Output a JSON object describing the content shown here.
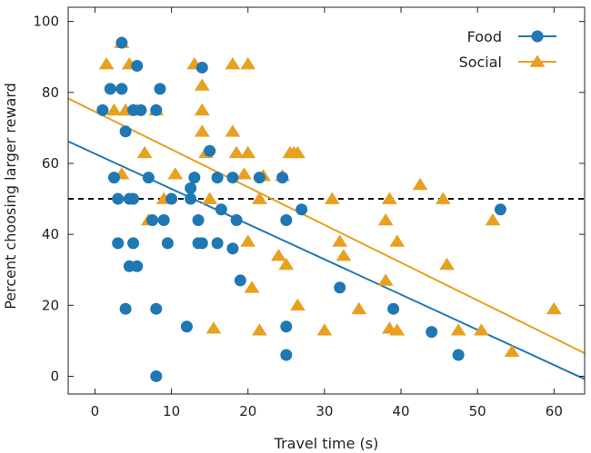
{
  "chart_data": {
    "type": "scatter",
    "title": "",
    "xlabel": "Travel time (s)",
    "ylabel": "Percent choosing larger reward",
    "xlim": [
      -3.5,
      64
    ],
    "ylim": [
      -5,
      104
    ],
    "xticks": [
      0,
      10,
      20,
      30,
      40,
      50,
      60
    ],
    "yticks": [
      0,
      20,
      40,
      60,
      80,
      100
    ],
    "reference_line": {
      "y": 50,
      "style": "dashed",
      "color": "#111111"
    },
    "legend_position": "top-right",
    "series": [
      {
        "name": "Food",
        "marker": "circle",
        "color": "#1f77b4",
        "fit_line": [
          [
            -3.5,
            66.2
          ],
          [
            64,
            -0.8
          ]
        ],
        "points": [
          [
            1,
            75
          ],
          [
            2,
            81
          ],
          [
            2.5,
            56
          ],
          [
            3,
            37.5
          ],
          [
            3,
            50
          ],
          [
            3.5,
            81
          ],
          [
            3.5,
            94
          ],
          [
            4,
            69
          ],
          [
            4,
            19
          ],
          [
            4.5,
            31
          ],
          [
            4.5,
            50
          ],
          [
            5,
            37.5
          ],
          [
            5,
            75
          ],
          [
            5,
            50
          ],
          [
            5.5,
            87.5
          ],
          [
            5.5,
            31
          ],
          [
            6,
            75
          ],
          [
            7,
            56
          ],
          [
            7.5,
            44
          ],
          [
            8,
            75
          ],
          [
            8,
            19
          ],
          [
            8,
            0
          ],
          [
            8.5,
            81
          ],
          [
            9,
            44
          ],
          [
            9.5,
            37.5
          ],
          [
            10,
            50
          ],
          [
            12,
            14
          ],
          [
            12.5,
            53
          ],
          [
            12.5,
            50
          ],
          [
            13,
            56
          ],
          [
            13.5,
            44
          ],
          [
            13.5,
            37.5
          ],
          [
            14,
            87
          ],
          [
            14,
            37.5
          ],
          [
            15,
            63.5
          ],
          [
            16,
            56
          ],
          [
            16,
            37.5
          ],
          [
            16.5,
            47
          ],
          [
            18,
            56
          ],
          [
            18,
            36
          ],
          [
            18.5,
            44
          ],
          [
            19,
            27
          ],
          [
            21.5,
            56
          ],
          [
            24.5,
            56
          ],
          [
            25,
            44
          ],
          [
            25,
            14
          ],
          [
            25,
            6
          ],
          [
            27,
            47
          ],
          [
            32,
            25
          ],
          [
            39,
            19
          ],
          [
            44,
            12.5
          ],
          [
            47.5,
            6
          ],
          [
            53,
            47
          ]
        ]
      },
      {
        "name": "Social",
        "marker": "triangle",
        "color": "#e8a020",
        "fit_line": [
          [
            -3.5,
            78.3
          ],
          [
            64,
            6.5
          ]
        ],
        "points": [
          [
            1.5,
            88
          ],
          [
            2.5,
            75
          ],
          [
            3.5,
            94
          ],
          [
            3.5,
            57
          ],
          [
            4,
            75
          ],
          [
            4.5,
            88
          ],
          [
            5,
            75
          ],
          [
            5.5,
            75
          ],
          [
            6.5,
            63
          ],
          [
            7,
            44
          ],
          [
            8,
            75
          ],
          [
            9,
            50
          ],
          [
            10.5,
            57
          ],
          [
            13,
            88
          ],
          [
            14,
            82
          ],
          [
            14,
            75
          ],
          [
            14,
            69
          ],
          [
            14.5,
            63
          ],
          [
            15,
            50
          ],
          [
            15.5,
            13.5
          ],
          [
            18,
            88
          ],
          [
            18,
            69
          ],
          [
            18.5,
            63
          ],
          [
            19.5,
            57
          ],
          [
            20,
            88
          ],
          [
            20,
            63
          ],
          [
            20,
            38
          ],
          [
            20.5,
            25
          ],
          [
            21.5,
            50
          ],
          [
            21.5,
            13
          ],
          [
            22,
            56.5
          ],
          [
            24,
            34
          ],
          [
            24.5,
            56.5
          ],
          [
            25,
            31.5
          ],
          [
            25.5,
            63
          ],
          [
            26,
            63
          ],
          [
            26.5,
            63
          ],
          [
            26.5,
            20
          ],
          [
            30,
            13
          ],
          [
            31,
            50
          ],
          [
            32,
            38
          ],
          [
            32.5,
            34
          ],
          [
            34.5,
            19
          ],
          [
            38,
            44
          ],
          [
            38,
            27
          ],
          [
            38.5,
            50
          ],
          [
            38.5,
            13.5
          ],
          [
            39.5,
            13
          ],
          [
            39.5,
            38
          ],
          [
            42.5,
            54
          ],
          [
            45.5,
            50
          ],
          [
            46,
            31.5
          ],
          [
            47.5,
            13
          ],
          [
            50.5,
            13
          ],
          [
            52,
            44
          ],
          [
            54.5,
            7
          ],
          [
            60,
            19
          ]
        ]
      }
    ]
  }
}
